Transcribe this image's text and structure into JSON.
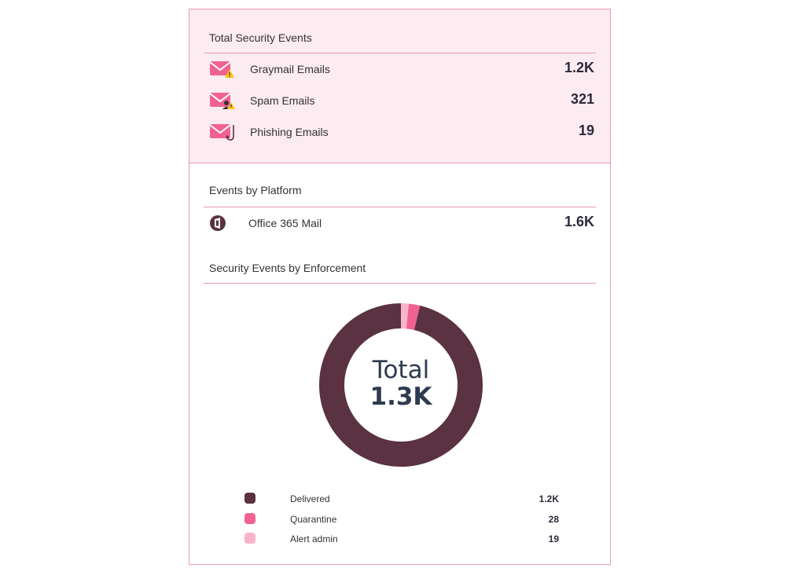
{
  "total_security_events": {
    "title": "Total Security Events",
    "items": [
      {
        "label": "Graymail Emails",
        "value": "1.2K",
        "icon": "graymail-envelope-warning-icon"
      },
      {
        "label": "Spam Emails",
        "value": "321",
        "icon": "spam-envelope-user-warning-icon"
      },
      {
        "label": "Phishing Emails",
        "value": "19",
        "icon": "phishing-envelope-hook-icon"
      }
    ]
  },
  "events_by_platform": {
    "title": "Events by Platform",
    "items": [
      {
        "label": "Office 365 Mail",
        "value": "1.6K",
        "icon": "office-365-icon"
      }
    ]
  },
  "enforcement": {
    "title": "Security Events by Enforcement",
    "center_label": "Total",
    "center_value": "1.3K"
  },
  "chart_data": {
    "type": "pie",
    "categories": [
      "Delivered",
      "Quarantine",
      "Alert admin"
    ],
    "values": [
      1200,
      28,
      19
    ],
    "value_labels": [
      "1.2K",
      "28",
      "19"
    ],
    "colors": [
      "#5a3242",
      "#f06292",
      "#f8b4cc"
    ],
    "legend": "bottom"
  },
  "colors": {
    "accent_pink": "#f06292",
    "border_pink": "#e79ab5",
    "panel_bg": "#fdebf2",
    "dark": "#5a3242"
  }
}
